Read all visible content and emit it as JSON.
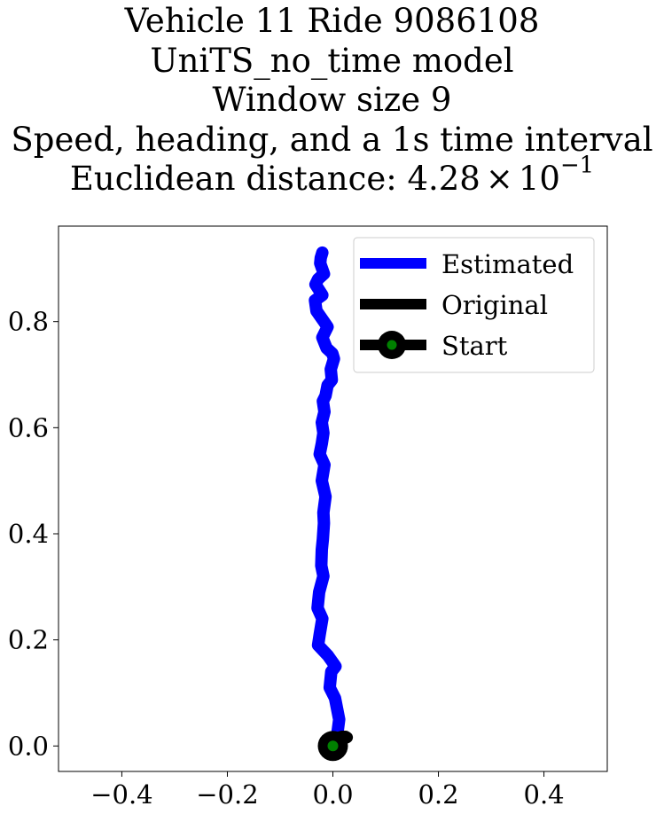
{
  "chart_data": {
    "type": "line",
    "title_lines": [
      "Vehicle 11 Ride 9086108",
      "UniTS_no_time model",
      "Window size 9",
      "Speed, heading, and a 1s time interval"
    ],
    "distance": {
      "prefix": "Euclidean distance: ",
      "mantissa": "4.28",
      "times": "×",
      "base": "10",
      "exponent": "−1"
    },
    "xlim": [
      -0.52,
      0.52
    ],
    "ylim": [
      -0.048,
      0.98
    ],
    "x_ticks": [
      {
        "value": -0.4,
        "label": "−0.4"
      },
      {
        "value": -0.2,
        "label": "−0.2"
      },
      {
        "value": 0.0,
        "label": "0.0"
      },
      {
        "value": 0.2,
        "label": "0.2"
      },
      {
        "value": 0.4,
        "label": "0.4"
      }
    ],
    "y_ticks": [
      {
        "value": 0.0,
        "label": "0.0"
      },
      {
        "value": 0.2,
        "label": "0.2"
      },
      {
        "value": 0.4,
        "label": "0.4"
      },
      {
        "value": 0.6,
        "label": "0.6"
      },
      {
        "value": 0.8,
        "label": "0.8"
      }
    ],
    "legend_position": "upper right",
    "series": [
      {
        "name": "Estimated",
        "color": "#0000ff",
        "x": [
          0.0,
          0.008,
          0.012,
          0.004,
          -0.006,
          -0.003,
          0.005,
          -0.009,
          -0.028,
          -0.025,
          -0.02,
          -0.029,
          -0.026,
          -0.018,
          -0.022,
          -0.021,
          -0.019,
          -0.017,
          -0.018,
          -0.014,
          -0.021,
          -0.016,
          -0.025,
          -0.021,
          -0.018,
          -0.021,
          -0.016,
          -0.019,
          -0.014,
          -0.01,
          -0.002,
          -0.004,
          0.002,
          -0.001,
          -0.012,
          -0.02,
          -0.01,
          -0.017,
          -0.031,
          -0.034,
          -0.02,
          -0.033,
          -0.028,
          -0.017,
          -0.024,
          -0.023,
          -0.02
        ],
        "y": [
          0.0,
          0.02,
          0.05,
          0.09,
          0.11,
          0.14,
          0.15,
          0.17,
          0.19,
          0.21,
          0.24,
          0.26,
          0.29,
          0.32,
          0.34,
          0.37,
          0.39,
          0.42,
          0.44,
          0.47,
          0.5,
          0.53,
          0.55,
          0.57,
          0.59,
          0.61,
          0.63,
          0.65,
          0.66,
          0.68,
          0.69,
          0.71,
          0.73,
          0.74,
          0.75,
          0.77,
          0.79,
          0.8,
          0.82,
          0.84,
          0.85,
          0.87,
          0.88,
          0.89,
          0.91,
          0.92,
          0.93
        ]
      },
      {
        "name": "Original",
        "color": "#000000",
        "x": [
          0.0,
          0.004,
          0.01,
          0.017,
          0.024,
          0.027,
          0.022
        ],
        "y": [
          0.0,
          0.01,
          0.016,
          0.018,
          0.018,
          0.016,
          0.014
        ]
      }
    ],
    "start": {
      "name": "Start",
      "x": 0.0,
      "y": 0.0,
      "edge_color": "#000000",
      "face_color": "#008000"
    }
  }
}
